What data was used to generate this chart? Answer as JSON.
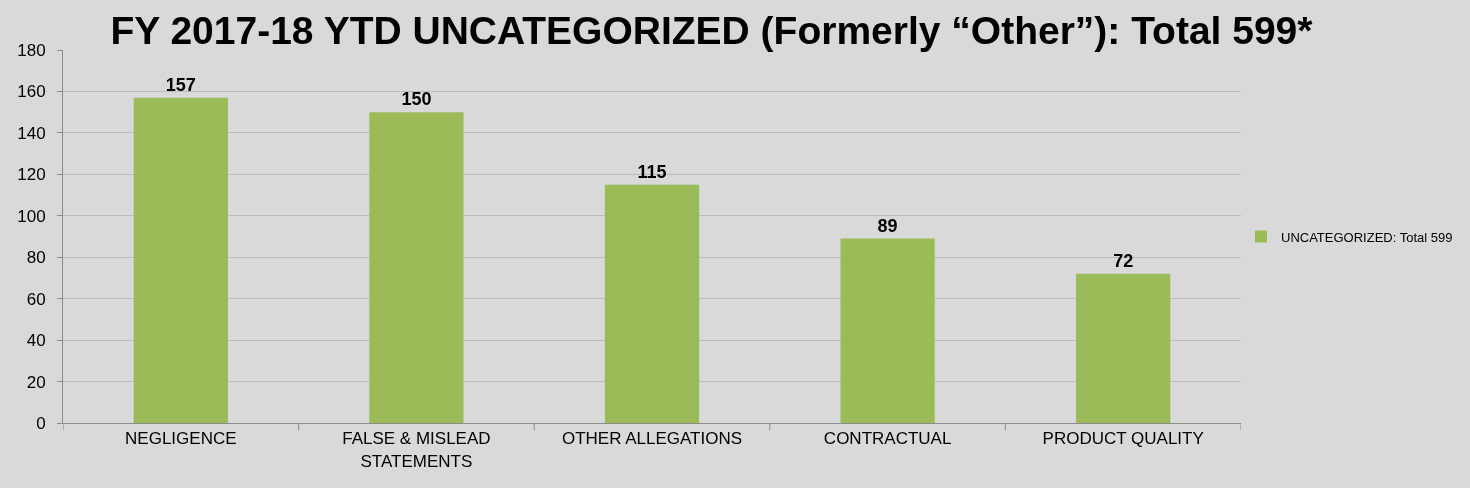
{
  "chart_data": {
    "type": "bar",
    "title": "FY 2017-18 YTD UNCATEGORIZED (Formerly “Other”): Total 599*",
    "categories": [
      "NEGLIGENCE",
      "FALSE & MISLEAD STATEMENTS",
      "OTHER ALLEGATIONS",
      "CONTRACTUAL",
      "PRODUCT QUALITY"
    ],
    "series": [
      {
        "name": "UNCATEGORIZED: Total 599",
        "color": "#9bbb59",
        "values": [
          157,
          150,
          115,
          89,
          72
        ]
      }
    ],
    "ylim": [
      0,
      180
    ],
    "yticks": [
      0,
      20,
      40,
      60,
      80,
      100,
      120,
      140,
      160,
      180
    ],
    "grid": "y",
    "legend": "right",
    "data_labels": true
  }
}
